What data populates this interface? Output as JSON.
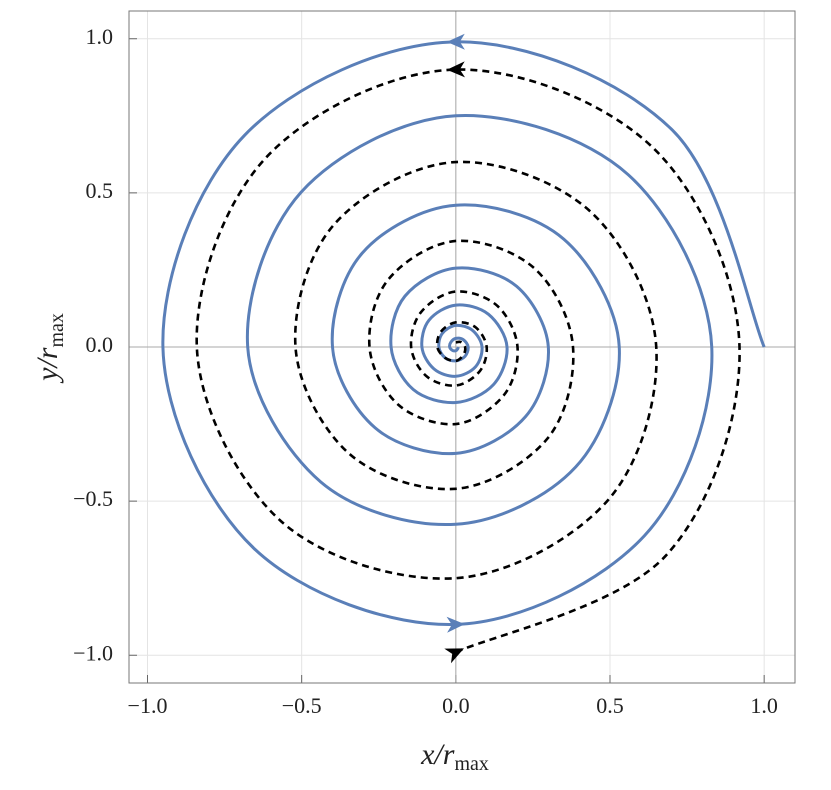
{
  "chart_data": {
    "type": "line",
    "xlabel": "x/r",
    "xlabel_sub": "max",
    "ylabel": "y/r",
    "ylabel_sub": "max",
    "xlim": [
      -1.06,
      1.1
    ],
    "ylim": [
      -1.09,
      1.09
    ],
    "xticks": [
      {
        "value": -1,
        "label": "−1.0"
      },
      {
        "value": -0.5,
        "label": "−0.5"
      },
      {
        "value": 0,
        "label": "0.0"
      },
      {
        "value": 0.5,
        "label": "0.5"
      },
      {
        "value": 1,
        "label": "1.0"
      }
    ],
    "yticks": [
      {
        "value": -1,
        "label": "−1.0"
      },
      {
        "value": -0.5,
        "label": "−0.5"
      },
      {
        "value": 0,
        "label": "0.0"
      },
      {
        "value": 0.5,
        "label": "0.5"
      },
      {
        "value": 1,
        "label": "1.0"
      }
    ],
    "grid": true,
    "series": [
      {
        "color": "#5a7fb8",
        "style": "solid",
        "x": [
          1,
          0.703,
          0,
          -0.686,
          -0.95,
          -0.654,
          0,
          0.612,
          0.83,
          0.559,
          0,
          -0.502,
          -0.675,
          -0.438,
          0,
          0.389,
          0.53,
          0.35,
          0,
          -0.304,
          -0.4,
          -0.262,
          0,
          0.226,
          0.3,
          0.197,
          0,
          -0.165,
          -0.21,
          -0.138,
          0,
          0.122,
          0.166,
          0.106,
          0,
          -0.087,
          -0.11,
          -0.071,
          0,
          0.064,
          0.085,
          0.054,
          0,
          -0.044,
          -0.055,
          -0.035,
          0,
          0.03,
          0.04,
          0.024,
          0,
          -0.016,
          -0.02,
          -0.011,
          0,
          0.006,
          0.008
        ],
        "y": [
          0,
          0.703,
          0.99,
          0.686,
          0,
          -0.654,
          -0.9,
          -0.612,
          0,
          0.559,
          0.75,
          0.502,
          0,
          -0.438,
          -0.575,
          -0.389,
          0,
          0.35,
          0.46,
          0.304,
          0,
          -0.262,
          -0.345,
          -0.226,
          0,
          0.197,
          0.256,
          0.165,
          0,
          -0.138,
          -0.18,
          -0.122,
          0,
          0.106,
          0.136,
          0.087,
          0,
          -0.071,
          -0.095,
          -0.064,
          0,
          0.054,
          0.07,
          0.044,
          0,
          -0.035,
          -0.045,
          -0.03,
          0,
          0.024,
          0.028,
          0.016,
          0,
          -0.011,
          -0.012,
          -0.006,
          0
        ]
      },
      {
        "color": "#000000",
        "style": "dashed",
        "x": [
          0,
          0.679,
          0.92,
          0.643,
          0,
          -0.615,
          -0.84,
          -0.566,
          0,
          0.495,
          0.65,
          0.438,
          0,
          -0.396,
          -0.52,
          -0.346,
          0,
          0.297,
          0.38,
          0.255,
          0,
          -0.219,
          -0.28,
          -0.187,
          0,
          0.156,
          0.2,
          0.134,
          0,
          -0.113,
          -0.145,
          -0.095,
          0,
          0.078,
          0.1,
          0.064,
          0,
          -0.049,
          -0.06,
          -0.035,
          0,
          0.025,
          0.03,
          0.016,
          0
        ],
        "y": [
          -0.99,
          -0.679,
          0,
          0.643,
          0.9,
          0.615,
          0,
          -0.566,
          -0.75,
          -0.495,
          0,
          0.438,
          0.6,
          0.396,
          0,
          -0.346,
          -0.46,
          -0.297,
          0,
          0.255,
          0.344,
          0.219,
          0,
          -0.187,
          -0.25,
          -0.156,
          0,
          0.134,
          0.18,
          0.113,
          0,
          -0.095,
          -0.125,
          -0.078,
          0,
          0.064,
          0.08,
          0.049,
          0,
          -0.035,
          -0.045,
          -0.025,
          0,
          0.016,
          0.015
        ]
      }
    ]
  }
}
